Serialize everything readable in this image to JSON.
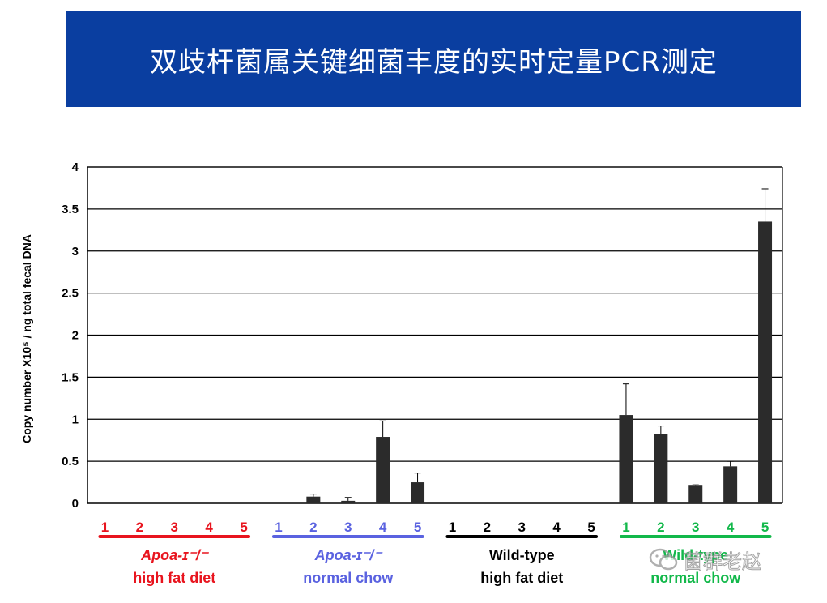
{
  "header": {
    "title": "双歧杆菌属关键细菌丰度的实时定量PCR测定",
    "background": "#0a3ea0"
  },
  "watermark": {
    "text": "菌群老赵"
  },
  "chart_data": {
    "type": "bar",
    "ylabel": "Copy number X10⁵ / ng total fecal DNA",
    "ylim": [
      0,
      4
    ],
    "yticks": [
      "0",
      "0.5",
      "1",
      "1.5",
      "2",
      "2.5",
      "3",
      "3.5",
      "4"
    ],
    "grid": true,
    "bar_color": "#2b2b2b",
    "groups": [
      {
        "name_line1": "Apoa‑ɪ⁻/⁻",
        "name_line2": "high fat diet",
        "color": "#e8141e",
        "categories": [
          "1",
          "2",
          "3",
          "4",
          "5"
        ],
        "values": [
          0,
          0,
          0,
          0,
          0
        ],
        "errors": [
          0,
          0,
          0,
          0,
          0
        ]
      },
      {
        "name_line1": "Apoa‑ɪ⁻/⁻",
        "name_line2": "normal chow",
        "color": "#5a62e0",
        "categories": [
          "1",
          "2",
          "3",
          "4",
          "5"
        ],
        "values": [
          0,
          0.08,
          0.03,
          0.79,
          0.25
        ],
        "errors": [
          0,
          0.03,
          0.04,
          0.19,
          0.11
        ]
      },
      {
        "name_line1": "Wild-type",
        "name_line2": "high fat diet",
        "color": "#000000",
        "categories": [
          "1",
          "2",
          "3",
          "4",
          "5"
        ],
        "values": [
          0,
          0,
          0,
          0,
          0
        ],
        "errors": [
          0,
          0,
          0,
          0,
          0
        ]
      },
      {
        "name_line1": "Wild-type",
        "name_line2": "normal chow",
        "color": "#12b84a",
        "categories": [
          "1",
          "2",
          "3",
          "4",
          "5"
        ],
        "values": [
          1.05,
          0.82,
          0.21,
          0.44,
          3.35
        ],
        "errors": [
          0.37,
          0.1,
          0.01,
          0.06,
          0.39
        ]
      }
    ]
  }
}
